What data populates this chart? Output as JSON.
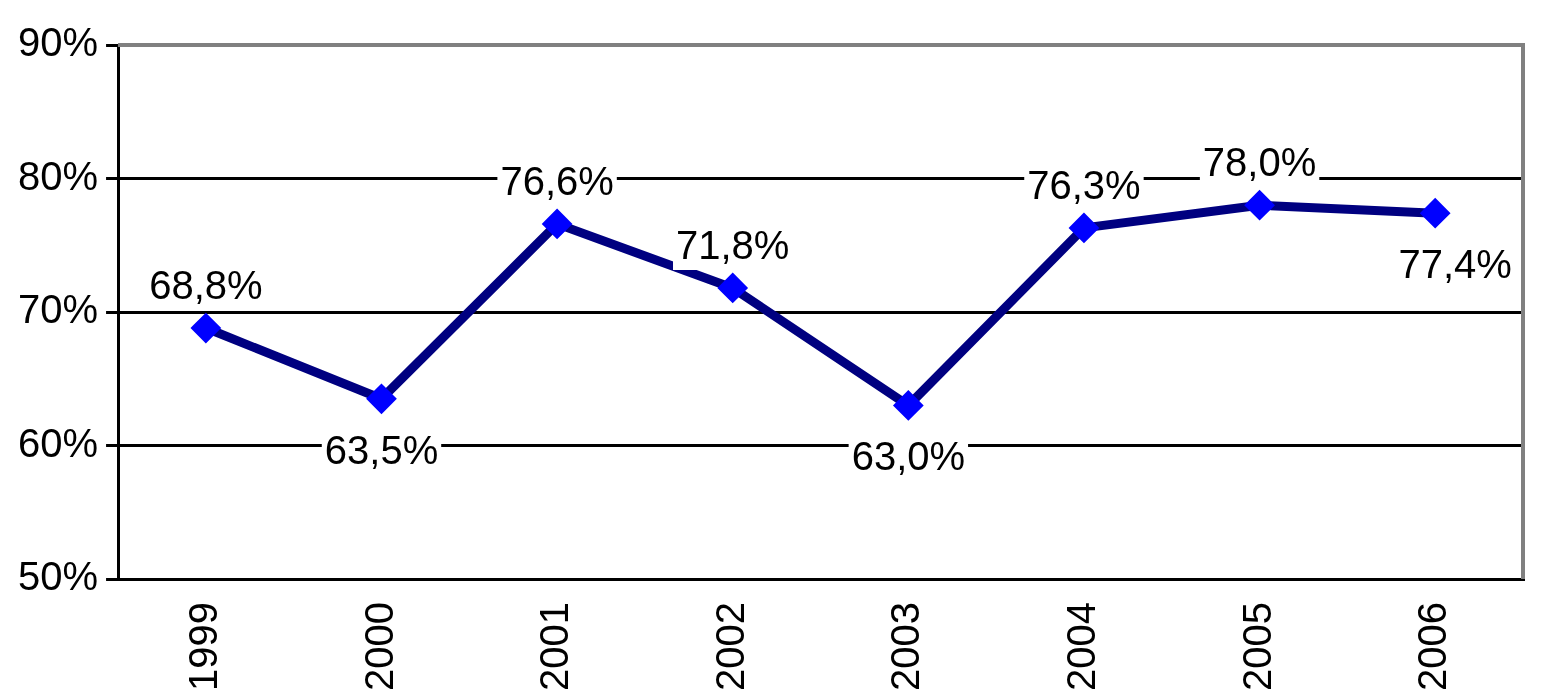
{
  "chart_data": {
    "type": "line",
    "categories": [
      "1999",
      "2000",
      "2001",
      "2002",
      "2003",
      "2004",
      "2005",
      "2006"
    ],
    "series": [
      {
        "color": "#000080",
        "values": [
          68.8,
          63.5,
          76.6,
          71.8,
          63.0,
          76.3,
          78.0,
          77.4
        ],
        "value_labels": [
          "68,8%",
          "63,5%",
          "76,6%",
          "71,8%",
          "63,0%",
          "76,3%",
          "78,0%",
          "77,4%"
        ]
      }
    ],
    "ylim": [
      50,
      90
    ],
    "yticks": [
      {
        "value": 50,
        "label": "50%"
      },
      {
        "value": 60,
        "label": "60%"
      },
      {
        "value": 70,
        "label": "70%"
      },
      {
        "value": 80,
        "label": "80%"
      },
      {
        "value": 90,
        "label": "90%"
      }
    ],
    "grid": "y",
    "marker": "diamond",
    "line_style": "solid",
    "legend": false
  }
}
